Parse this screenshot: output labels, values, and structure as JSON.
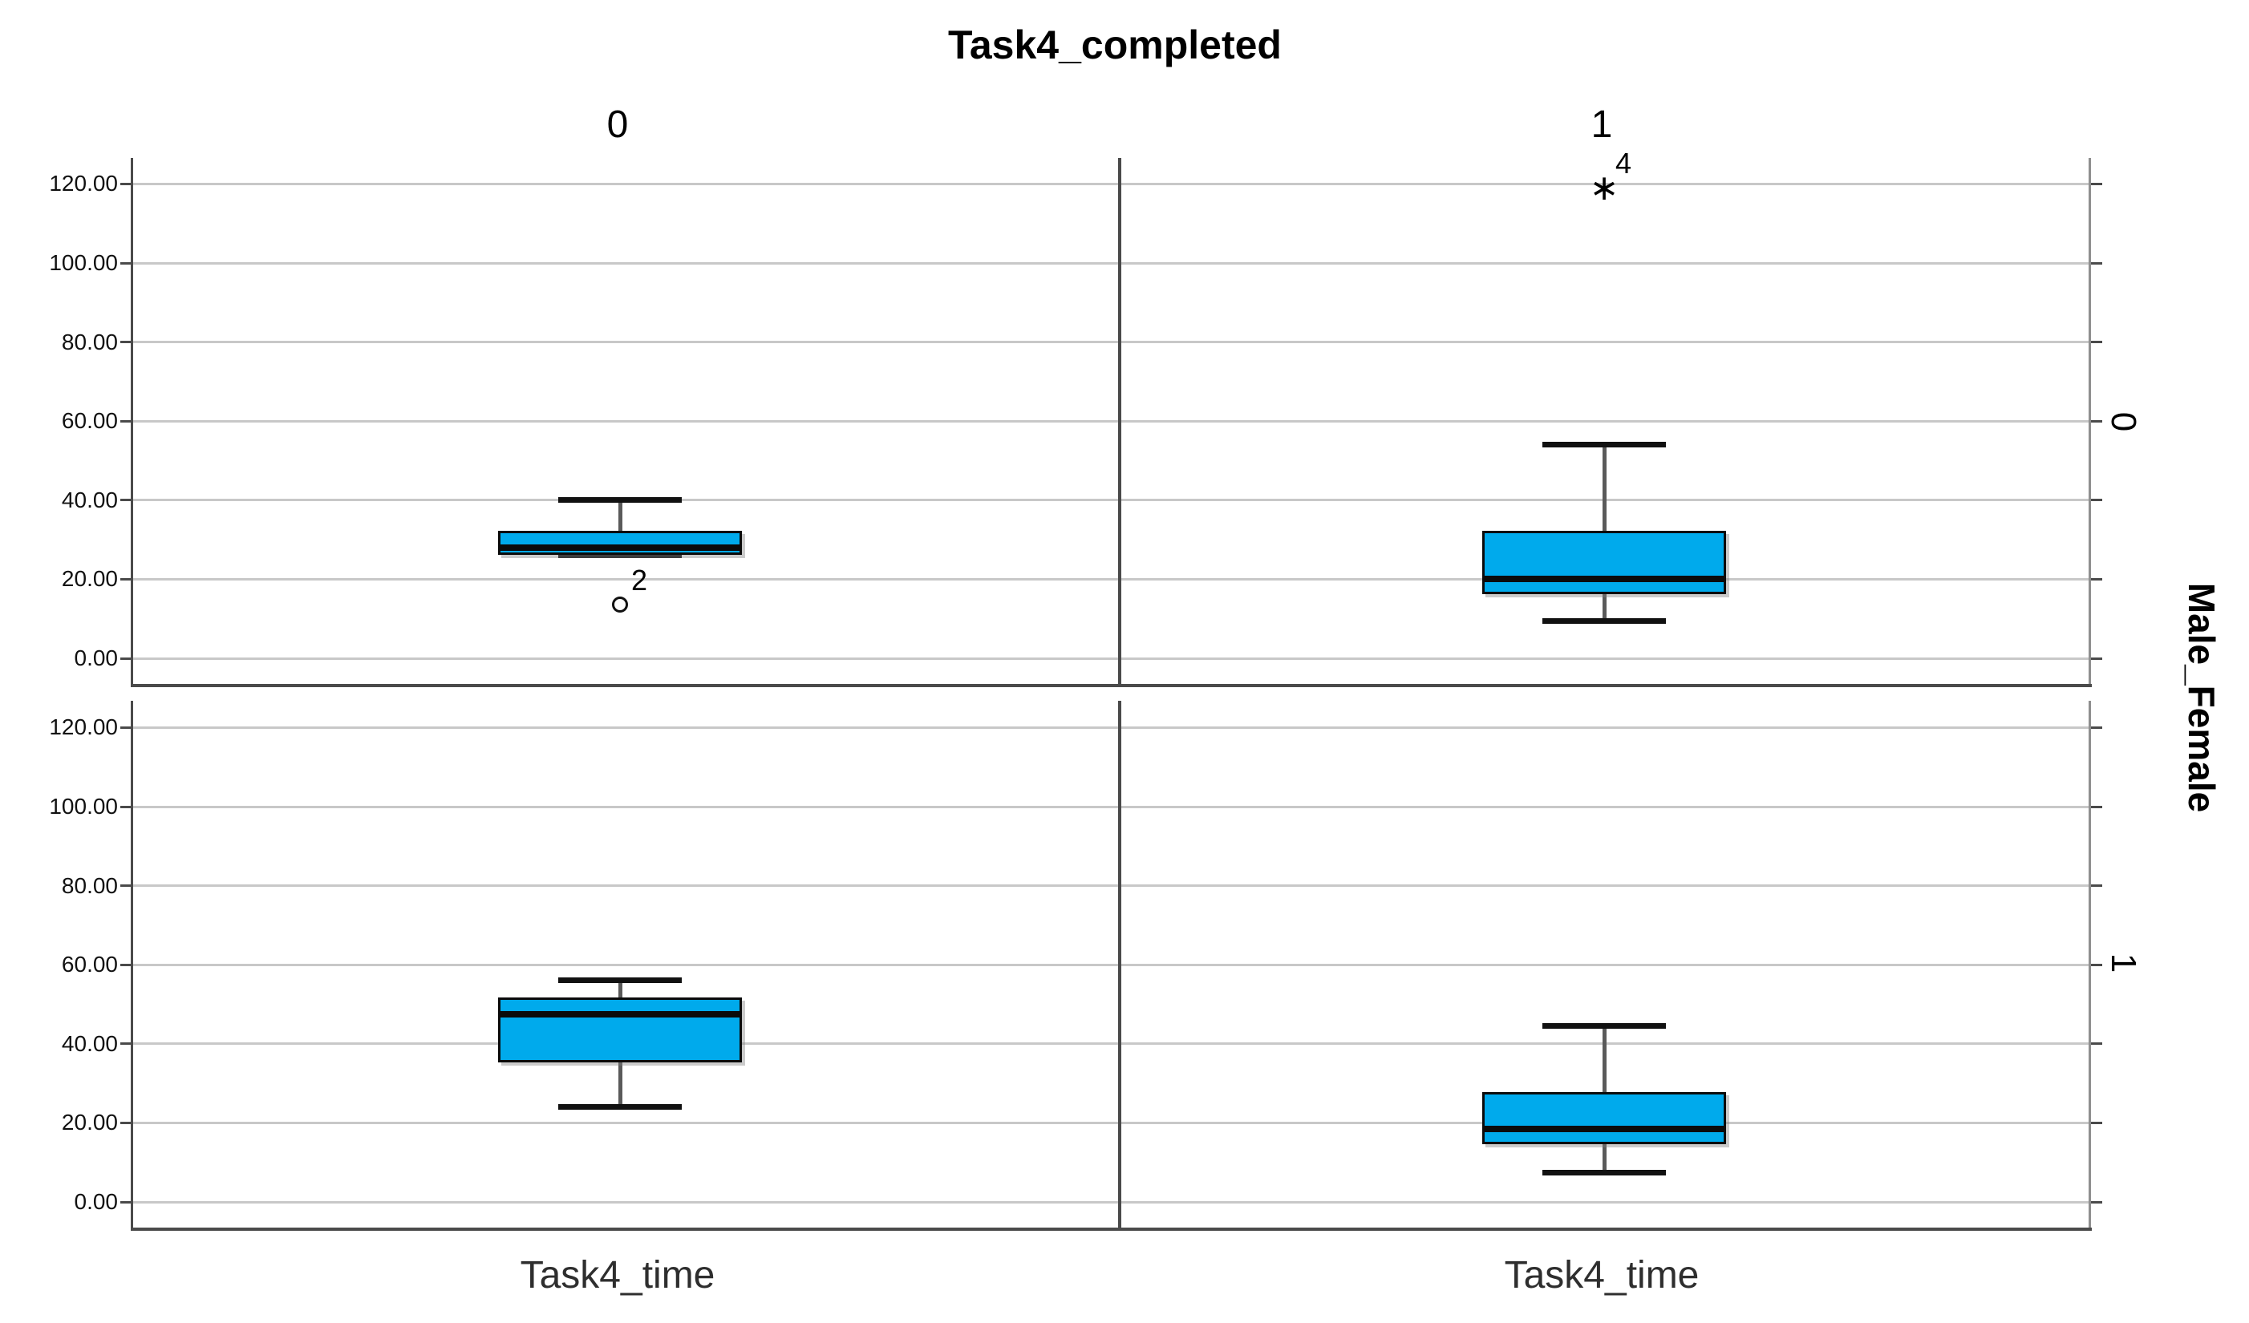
{
  "title": "Task4_completed",
  "column_headers": [
    "0",
    "1"
  ],
  "row_headers": [
    "0",
    "1"
  ],
  "row_axis_title": "Male_Female",
  "x_axis_label": "Task4_time",
  "y_ticks": [
    "120.00",
    "100.00",
    "80.00",
    "60.00",
    "40.00",
    "20.00",
    "0.00"
  ],
  "outlier_labels": [
    "2",
    "4"
  ],
  "colors": {
    "box_fill": "#00AAEC",
    "box_border": "#0B0B0B",
    "whisker": "#5A5A5A",
    "whisker_cap": "#111111",
    "gridline": "#C8C8C8",
    "axis": "#4A4A4A",
    "panel_right_edge": "#8F8F8F"
  },
  "chart_data": {
    "type": "boxplot",
    "title": "Task4_completed",
    "xlabel": "Task4_time",
    "column_variable": "Task4_completed",
    "row_variable": "Male_Female",
    "ylim": [
      0,
      130
    ],
    "y_tick_values": [
      120,
      100,
      80,
      60,
      40,
      20,
      0
    ],
    "y_tick_labels": [
      "120.00",
      "100.00",
      "80.00",
      "60.00",
      "40.00",
      "20.00",
      "0.00"
    ],
    "grid": true,
    "panels": [
      {
        "column_value": "0",
        "row_value": "0",
        "row": 0,
        "col": 0,
        "stats": {
          "whisker_low": 26,
          "q1": 26.5,
          "median": 28,
          "q3": 32,
          "whisker_high": 40
        },
        "outliers": [
          {
            "value": 13.5,
            "label": "2",
            "marker": "circle"
          }
        ]
      },
      {
        "column_value": "1",
        "row_value": "0",
        "row": 0,
        "col": 1,
        "stats": {
          "whisker_low": 9.5,
          "q1": 16.5,
          "median": 20,
          "q3": 32,
          "whisker_high": 54
        },
        "outliers": [
          {
            "value": 119,
            "label": "4",
            "marker": "asterisk"
          }
        ]
      },
      {
        "column_value": "0",
        "row_value": "1",
        "row": 1,
        "col": 0,
        "stats": {
          "whisker_low": 24,
          "q1": 35.5,
          "median": 47.5,
          "q3": 51.5,
          "whisker_high": 56
        },
        "outliers": []
      },
      {
        "column_value": "1",
        "row_value": "1",
        "row": 1,
        "col": 1,
        "stats": {
          "whisker_low": 7.5,
          "q1": 15,
          "median": 18.5,
          "q3": 27.5,
          "whisker_high": 44.5
        },
        "outliers": []
      }
    ]
  }
}
